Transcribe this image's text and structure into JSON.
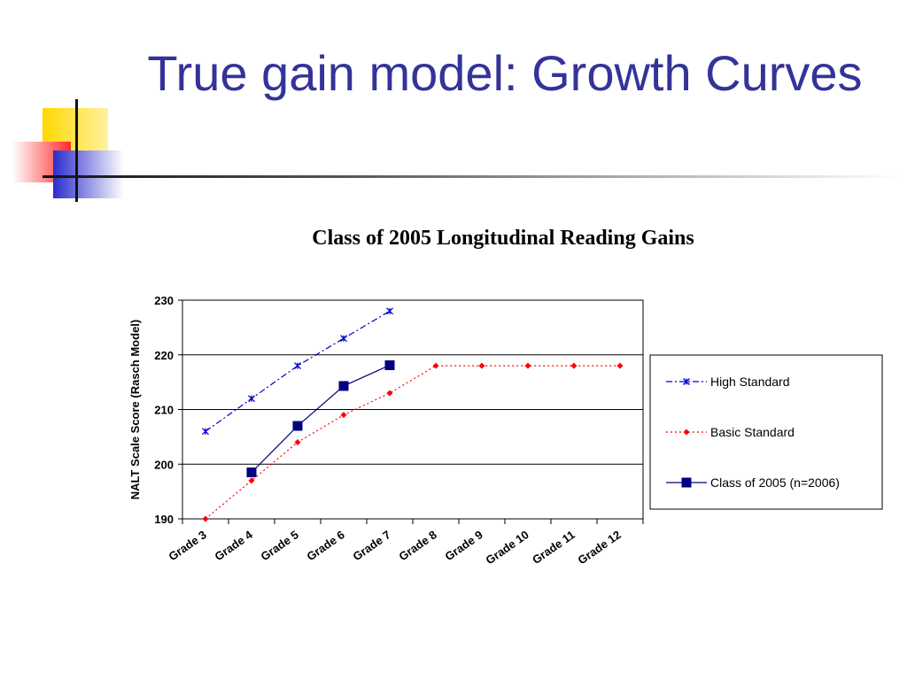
{
  "slide": {
    "title": "True gain model: Growth Curves"
  },
  "colors": {
    "title": "#333399",
    "high_standard": "#0000CC",
    "basic_standard": "#FF0000",
    "class_of_2005": "#000080",
    "deco_yellow": "#FFD700",
    "deco_red": "#FF3333",
    "deco_blue": "#3333CC"
  },
  "chart_data": {
    "type": "line",
    "title": "Class of 2005 Longitudinal Reading Gains",
    "xlabel": "",
    "ylabel": "NALT Scale Score (Rasch Model)",
    "ylim": [
      190,
      230
    ],
    "yticks": [
      190,
      200,
      210,
      220,
      230
    ],
    "grid": true,
    "legend_position": "right",
    "categories": [
      "Grade 3",
      "Grade 4",
      "Grade 5",
      "Grade 6",
      "Grade 7",
      "Grade 8",
      "Grade 9",
      "Grade 10",
      "Grade 11",
      "Grade 12"
    ],
    "series": [
      {
        "name": "High Standard",
        "values": [
          206,
          212,
          218,
          223,
          228,
          null,
          null,
          null,
          null,
          null
        ],
        "color": "#0000CC",
        "line_style": "dash-dot",
        "marker": "star"
      },
      {
        "name": "Basic Standard",
        "values": [
          190,
          197,
          204,
          209,
          213,
          218,
          218,
          218,
          218,
          218
        ],
        "color": "#FF0000",
        "line_style": "dotted",
        "marker": "diamond"
      },
      {
        "name": "Class of 2005 (n=2006)",
        "values": [
          null,
          198.5,
          207,
          214.3,
          218.1,
          null,
          null,
          null,
          null,
          null
        ],
        "color": "#000080",
        "line_style": "solid",
        "marker": "square"
      }
    ]
  }
}
